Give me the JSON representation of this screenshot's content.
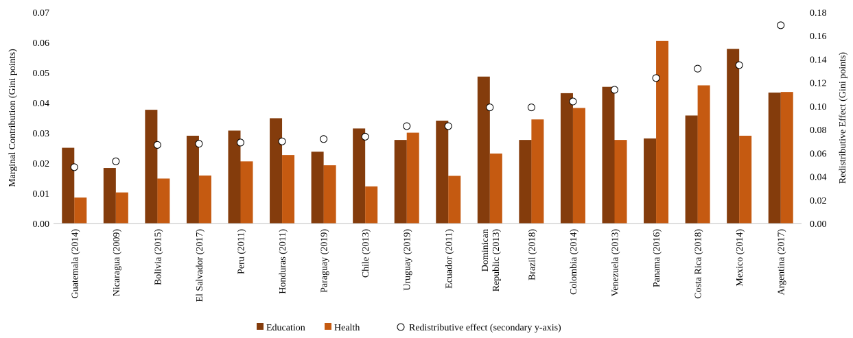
{
  "chart_data": {
    "type": "bar",
    "categories": [
      "Guatemala (2014)",
      "Nicaragua (2009)",
      "Bolivia (2015)",
      "El Salvador (2017)",
      "Peru (2011)",
      "Honduras (2011)",
      "Paraguay (2019)",
      "Chile (2013)",
      "Uruguay (2019)",
      "Ecuador (2011)",
      "Dominican Republic (2013)",
      "Brazil (2018)",
      "Colombia (2014)",
      "Venezuela (2013)",
      "Panama (2016)",
      "Costa Rica (2018)",
      "Mexico (2014)",
      "Argentina (2017)"
    ],
    "category_lines": [
      [
        "Guatemala (2014)"
      ],
      [
        "Nicaragua (2009)"
      ],
      [
        "Bolivia (2015)"
      ],
      [
        "El Salvador (2017)"
      ],
      [
        "Peru (2011)"
      ],
      [
        "Honduras (2011)"
      ],
      [
        "Paraguay (2019)"
      ],
      [
        "Chile (2013)"
      ],
      [
        "Uruguay (2019)"
      ],
      [
        "Ecuador (2011)"
      ],
      [
        "Dominican",
        "Republic (2013)"
      ],
      [
        "Brazil (2018)"
      ],
      [
        "Colombia (2014)"
      ],
      [
        "Venezuela (2013)"
      ],
      [
        "Panama (2016)"
      ],
      [
        "Costa Rica (2018)"
      ],
      [
        "Mexico (2014)"
      ],
      [
        "Argentina (2017)"
      ]
    ],
    "series": [
      {
        "name": "Education",
        "axis": "primary",
        "kind": "bar",
        "color": "#843C0C",
        "values": [
          0.0251,
          0.0184,
          0.0377,
          0.0291,
          0.0308,
          0.0349,
          0.0238,
          0.0315,
          0.0277,
          0.0341,
          0.0487,
          0.0277,
          0.0432,
          0.0453,
          0.0282,
          0.0358,
          0.0579,
          0.0434
        ]
      },
      {
        "name": "Health",
        "axis": "primary",
        "kind": "bar",
        "color": "#C55A11",
        "values": [
          0.0086,
          0.0103,
          0.0149,
          0.0159,
          0.0206,
          0.0227,
          0.0193,
          0.0123,
          0.0301,
          0.0158,
          0.0232,
          0.0345,
          0.0383,
          0.0277,
          0.0605,
          0.0458,
          0.0291,
          0.0436
        ]
      },
      {
        "name": "Redistributive effect (secondary y-axis)",
        "axis": "secondary",
        "kind": "marker",
        "color": "#FFFFFF",
        "values": [
          0.048,
          0.053,
          0.067,
          0.068,
          0.069,
          0.07,
          0.072,
          0.074,
          0.083,
          0.083,
          0.099,
          0.099,
          0.104,
          0.114,
          0.124,
          0.132,
          0.135,
          0.169
        ]
      }
    ],
    "ylabel": "Marginal Contribution (Gini points)",
    "y2label": "Redistributive Effect (Gini points)",
    "ylim": [
      0,
      0.07
    ],
    "y2lim": [
      0,
      0.18
    ],
    "yticks": [
      "0.00",
      "0.01",
      "0.02",
      "0.03",
      "0.04",
      "0.05",
      "0.06",
      "0.07"
    ],
    "y2ticks": [
      "0.00",
      "0.02",
      "0.04",
      "0.06",
      "0.08",
      "0.10",
      "0.12",
      "0.14",
      "0.16",
      "0.18"
    ],
    "grid": false,
    "legend_position": "bottom"
  }
}
